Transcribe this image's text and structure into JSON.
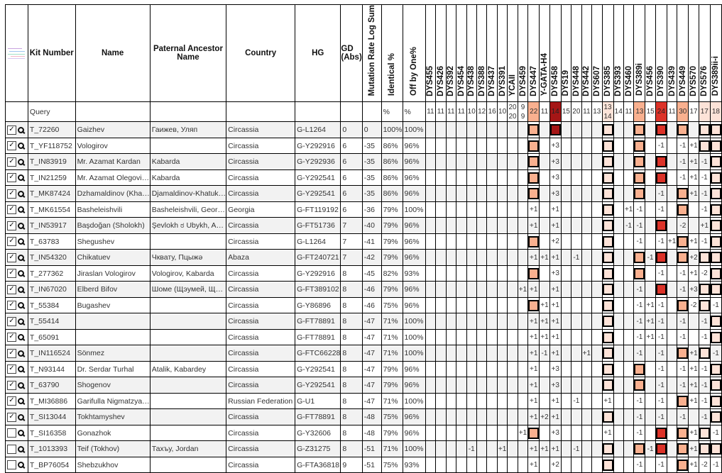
{
  "headers": {
    "kit": "Kit Number",
    "name": "Name",
    "ancestor": "Paternal Ancestor Name",
    "country": "Country",
    "hg": "HG",
    "gd": "GD (Abs)",
    "mr": "Mutation Rate Log Sum",
    "ident": "Identical %",
    "off": "Off by One%"
  },
  "markers": [
    "DYS455",
    "DYS426",
    "DYS392",
    "DYS454",
    "DYS438",
    "DYS388",
    "DYS437",
    "DYS391",
    "YCAII",
    "DYS459",
    "DYS447",
    "Y-GATA-H4",
    "DYS458",
    "DYS19",
    "DYS448",
    "DYS442",
    "DYS607",
    "DYS385",
    "DYS393",
    "DYS460",
    "DYS389i",
    "DYS456",
    "DYS390",
    "DYS439",
    "DYS449",
    "DYS570",
    "DYS576",
    "DYS389ii-i"
  ],
  "query": {
    "label": "Query",
    "ident": "%",
    "off": "%",
    "values": [
      "11",
      "11",
      "11",
      "11",
      "10",
      "12",
      "16",
      "10",
      "20 20",
      "9 9",
      "22",
      "11",
      "14",
      "15",
      "20",
      "11",
      "13",
      "13 14",
      "14",
      "11",
      "13",
      "15",
      "24",
      "11",
      "30",
      "17",
      "17",
      "18"
    ]
  },
  "marker_colors": {
    "DYS447": "#f9b08f",
    "DYS458": "#a51616",
    "DYS385": "#fde3d8",
    "DYS389i": "#f9b08f",
    "DYS390": "#dc3228",
    "DYS449": "#f9b08f",
    "DYS576": "#fde3d8",
    "DYS389ii-i": "#fde3d8"
  },
  "rows": [
    {
      "checked": true,
      "kit": "T_72260",
      "name": "Gaizhev",
      "ancestor": "Гаижев, Уляп",
      "country": "Circassia",
      "hg": "G-L1264",
      "gd": "0",
      "mr": "0",
      "ident": "100%",
      "off": "100%",
      "diffs": {}
    },
    {
      "checked": true,
      "kit": "T_YF118752",
      "name": "Vologirov",
      "ancestor": "",
      "country": "Circassia",
      "hg": "G-Y292916",
      "gd": "6",
      "mr": "-35",
      "ident": "86%",
      "off": "96%",
      "diffs": {
        "DYS458": "+3",
        "DYS390": "-1",
        "DYS449": "-1",
        "DYS570": "+1"
      }
    },
    {
      "checked": true,
      "kit": "T_IN83919",
      "name": "Mr. Azamat Kardan",
      "ancestor": "Kabarda",
      "country": "Circassia",
      "hg": "G-Y292936",
      "gd": "6",
      "mr": "-35",
      "ident": "86%",
      "off": "96%",
      "diffs": {
        "DYS458": "+3",
        "DYS449": "-1",
        "DYS570": "+1",
        "DYS576": "-1"
      }
    },
    {
      "checked": true,
      "kit": "T_IN21259",
      "name": "Mr. Azamat Olegovi…",
      "ancestor": "Kabarda",
      "country": "Circassia",
      "hg": "G-Y292541",
      "gd": "6",
      "mr": "-35",
      "ident": "86%",
      "off": "96%",
      "diffs": {
        "DYS458": "+3",
        "DYS449": "-1",
        "DYS570": "+1",
        "DYS576": "-1"
      }
    },
    {
      "checked": true,
      "kit": "T_MK87424",
      "name": "Dzhamaldinov (Kha…",
      "ancestor": "Djamaldinov-Khatuk…",
      "country": "Circassia",
      "hg": "G-Y292541",
      "gd": "6",
      "mr": "-35",
      "ident": "86%",
      "off": "96%",
      "diffs": {
        "DYS458": "+3",
        "DYS390": "-1",
        "DYS570": "+1",
        "DYS576": "-1"
      }
    },
    {
      "checked": true,
      "kit": "T_MK61554",
      "name": "Basheleishvili",
      "ancestor": "Basheleishvili, Geor…",
      "country": "Georgia",
      "hg": "G-FT119192",
      "gd": "6",
      "mr": "-36",
      "ident": "79%",
      "off": "100%",
      "diffs": {
        "DYS447": "+1",
        "DYS458": "+1",
        "DYS460": "+1",
        "DYS389i": "-1",
        "DYS390": "-1",
        "DYS576": "-1"
      }
    },
    {
      "checked": true,
      "kit": "T_IN53917",
      "name": "Başdoğan (Sholokh)",
      "ancestor": "Şevlokh ಠ Ubykh, A…",
      "country": "Circassia",
      "hg": "G-FT51736",
      "gd": "7",
      "mr": "-40",
      "ident": "79%",
      "off": "96%",
      "diffs": {
        "DYS447": "+1",
        "DYS458": "+1",
        "DYS460": "-1",
        "DYS389i": "-1",
        "DYS449": "-2",
        "DYS576": "+1"
      }
    },
    {
      "checked": true,
      "kit": "T_63783",
      "name": "Shegushev",
      "ancestor": "",
      "country": "Circassia",
      "hg": "G-L1264",
      "gd": "7",
      "mr": "-41",
      "ident": "79%",
      "off": "96%",
      "diffs": {
        "DYS458": "+2",
        "DYS389i": "-1",
        "DYS390": "-1",
        "DYS439": "+1",
        "DYS570": "+1",
        "DYS576": "-1"
      }
    },
    {
      "checked": true,
      "kit": "T_IN54320",
      "name": "Chikatuev",
      "ancestor": "Чквату, Пцыжә",
      "country": "Abaza",
      "hg": "G-FT240721",
      "gd": "7",
      "mr": "-42",
      "ident": "79%",
      "off": "96%",
      "diffs": {
        "DYS447": "+1",
        "Y-GATA-H4": "+1",
        "DYS458": "+1",
        "DYS448": "-1",
        "DYS456": "-1",
        "DYS570": "+2"
      }
    },
    {
      "checked": true,
      "kit": "T_277362",
      "name": "Jiraslan Vologirov",
      "ancestor": "Vologirov, Kabarda",
      "country": "Circassia",
      "hg": "G-Y292916",
      "gd": "8",
      "mr": "-45",
      "ident": "82%",
      "off": "93%",
      "diffs": {
        "DYS458": "+3",
        "DYS390": "-1",
        "DYS449": "-1",
        "DYS570": "+1",
        "DYS576": "-2"
      }
    },
    {
      "checked": true,
      "kit": "T_IN67020",
      "name": "Elberd Bifov",
      "ancestor": "Шоме (Щэумей, Щ…",
      "country": "Circassia",
      "hg": "G-FT389102",
      "gd": "8",
      "mr": "-46",
      "ident": "79%",
      "off": "96%",
      "diffs": {
        "DYS459": "+1",
        "DYS447": "+1",
        "DYS458": "+1",
        "DYS389i": "-1",
        "DYS449": "-1",
        "DYS570": "+3"
      }
    },
    {
      "checked": true,
      "kit": "T_55384",
      "name": "Bugashev",
      "ancestor": "",
      "country": "Circassia",
      "hg": "G-Y86896",
      "gd": "8",
      "mr": "-46",
      "ident": "75%",
      "off": "96%",
      "diffs": {
        "Y-GATA-H4": "+1",
        "DYS458": "+1",
        "DYS389i": "-1",
        "DYS456": "+1",
        "DYS390": "-1",
        "DYS570": "-2",
        "DYS389ii-i": "-1"
      }
    },
    {
      "checked": true,
      "kit": "T_55414",
      "name": "",
      "ancestor": "",
      "country": "Circassia",
      "hg": "G-FT78891",
      "gd": "8",
      "mr": "-47",
      "ident": "71%",
      "off": "100%",
      "diffs": {
        "DYS447": "+1",
        "Y-GATA-H4": "+1",
        "DYS458": "+1",
        "DYS389i": "-1",
        "DYS456": "+1",
        "DYS390": "-1",
        "DYS449": "-1",
        "DYS576": "-1"
      }
    },
    {
      "checked": true,
      "kit": "T_65091",
      "name": "",
      "ancestor": "",
      "country": "Circassia",
      "hg": "G-FT78891",
      "gd": "8",
      "mr": "-47",
      "ident": "71%",
      "off": "100%",
      "diffs": {
        "DYS447": "+1",
        "Y-GATA-H4": "+1",
        "DYS458": "+1",
        "DYS389i": "-1",
        "DYS456": "+1",
        "DYS390": "-1",
        "DYS449": "-1",
        "DYS576": "-1"
      }
    },
    {
      "checked": true,
      "kit": "T_IN116524",
      "name": "Sönmez",
      "ancestor": "",
      "country": "Circassia",
      "hg": "G-FTC66228",
      "gd": "8",
      "mr": "-47",
      "ident": "71%",
      "off": "100%",
      "diffs": {
        "DYS447": "+1",
        "Y-GATA-H4": "-1",
        "DYS458": "+1",
        "DYS442": "+1",
        "DYS389i": "-1",
        "DYS390": "-1",
        "DYS570": "+1",
        "DYS389ii-i": "-1"
      }
    },
    {
      "checked": true,
      "kit": "T_N93144",
      "name": "Dr. Serdar Turhal",
      "ancestor": "Atalik, Kabardey",
      "country": "Circassia",
      "hg": "G-Y292541",
      "gd": "8",
      "mr": "-47",
      "ident": "79%",
      "off": "96%",
      "diffs": {
        "DYS447": "+1",
        "DYS458": "+3",
        "DYS390": "-1",
        "DYS449": "-1",
        "DYS570": "+1",
        "DYS576": "-1"
      }
    },
    {
      "checked": true,
      "kit": "T_63790",
      "name": "Shogenov",
      "ancestor": "",
      "country": "Circassia",
      "hg": "G-Y292541",
      "gd": "8",
      "mr": "-47",
      "ident": "79%",
      "off": "96%",
      "diffs": {
        "DYS447": "+1",
        "DYS458": "+3",
        "DYS390": "-1",
        "DYS449": "-1",
        "DYS570": "+1",
        "DYS576": "-1"
      }
    },
    {
      "checked": true,
      "kit": "T_MI36886",
      "name": "Garifulla Nigmatzya…",
      "ancestor": "",
      "country": "Russian Federation",
      "hg": "G-U1",
      "gd": "8",
      "mr": "-47",
      "ident": "71%",
      "off": "100%",
      "diffs": {
        "DYS447": "+1",
        "DYS458": "+1",
        "DYS448": "-1",
        "DYS385": "+1",
        "DYS389i": "-1",
        "DYS390": "-1",
        "DYS570": "+1",
        "DYS576": "-1"
      }
    },
    {
      "checked": true,
      "kit": "T_SI13044",
      "name": "Tokhtamyshev",
      "ancestor": "",
      "country": "Circassia",
      "hg": "G-FT78891",
      "gd": "8",
      "mr": "-48",
      "ident": "75%",
      "off": "96%",
      "diffs": {
        "DYS447": "+1",
        "Y-GATA-H4": "+2",
        "DYS458": "+1",
        "DYS389i": "-1",
        "DYS390": "-1",
        "DYS449": "-1",
        "DYS576": "-1"
      }
    },
    {
      "checked": false,
      "kit": "T_SI16358",
      "name": "Gonazhok",
      "ancestor": "",
      "country": "Circassia",
      "hg": "G-Y32606",
      "gd": "8",
      "mr": "-48",
      "ident": "79%",
      "off": "96%",
      "diffs": {
        "DYS459": "+1",
        "DYS458": "+3",
        "DYS385": "+1",
        "DYS389i": "-1",
        "DYS570": "+1",
        "DYS389ii-i": "-1"
      }
    },
    {
      "checked": false,
      "kit": "T_1013393",
      "name": "Teif (Tokhov)",
      "ancestor": "Тахъу, Jordan",
      "country": "Circassia",
      "hg": "G-Z31275",
      "gd": "8",
      "mr": "-51",
      "ident": "71%",
      "off": "100%",
      "diffs": {
        "DYS438": "-1",
        "DYS391": "+1",
        "DYS447": "+1",
        "Y-GATA-H4": "+1",
        "DYS458": "+1",
        "DYS448": "-1",
        "DYS456": "-1",
        "DYS570": "+1"
      }
    },
    {
      "checked": false,
      "kit": "T_BP76054",
      "name": "Shebzukhov",
      "ancestor": "",
      "country": "Circassia",
      "hg": "G-FTA36818",
      "gd": "9",
      "mr": "-51",
      "ident": "75%",
      "off": "93%",
      "diffs": {
        "DYS447": "+1",
        "DYS458": "+2",
        "DYS389i": "-1",
        "DYS390": "-1",
        "DYS570": "+1",
        "DYS576": "-2",
        "DYS389ii-i": "-1"
      }
    }
  ]
}
